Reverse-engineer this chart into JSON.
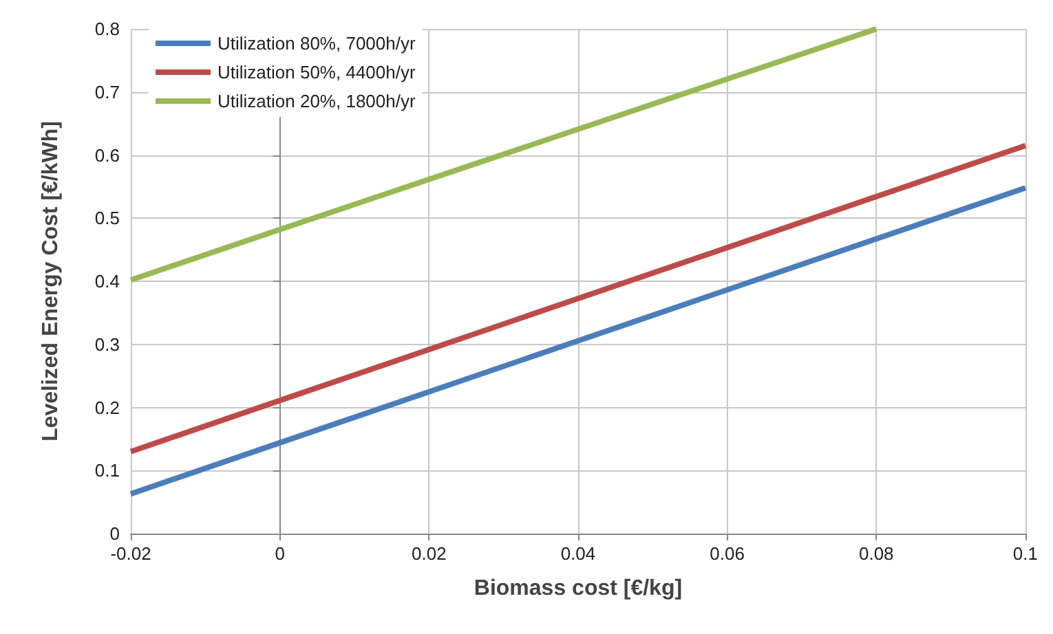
{
  "chart_data": {
    "type": "line",
    "xlabel": "Biomass cost [€/kg]",
    "ylabel": "Levelized Energy Cost [€/kWh]",
    "series": [
      {
        "name": "Utilization 80%, 7000h/yr",
        "color": "#4a7ebb",
        "x": [
          -0.02,
          0,
          0.1
        ],
        "values": [
          0.063,
          0.144,
          0.548
        ]
      },
      {
        "name": "Utilization 50%, 4400h/yr",
        "color": "#be4b48",
        "x": [
          -0.02,
          0,
          0.1
        ],
        "values": [
          0.13,
          0.211,
          0.615
        ]
      },
      {
        "name": "Utilization 20%, 1800h/yr",
        "color": "#98b954",
        "x": [
          -0.02,
          0,
          0.08
        ],
        "values": [
          0.402,
          0.482,
          0.8
        ]
      }
    ],
    "xlim": [
      -0.02,
      0.1
    ],
    "xticks": [
      -0.02,
      0,
      0.02,
      0.04,
      0.06,
      0.08,
      0.1
    ],
    "ylim": [
      0,
      0.8
    ],
    "yticks": [
      0,
      0.1,
      0.2,
      0.3,
      0.4,
      0.5,
      0.6,
      0.7,
      0.8
    ],
    "grid": true,
    "legend": "top left",
    "marker": "none",
    "line_style": "solid"
  }
}
